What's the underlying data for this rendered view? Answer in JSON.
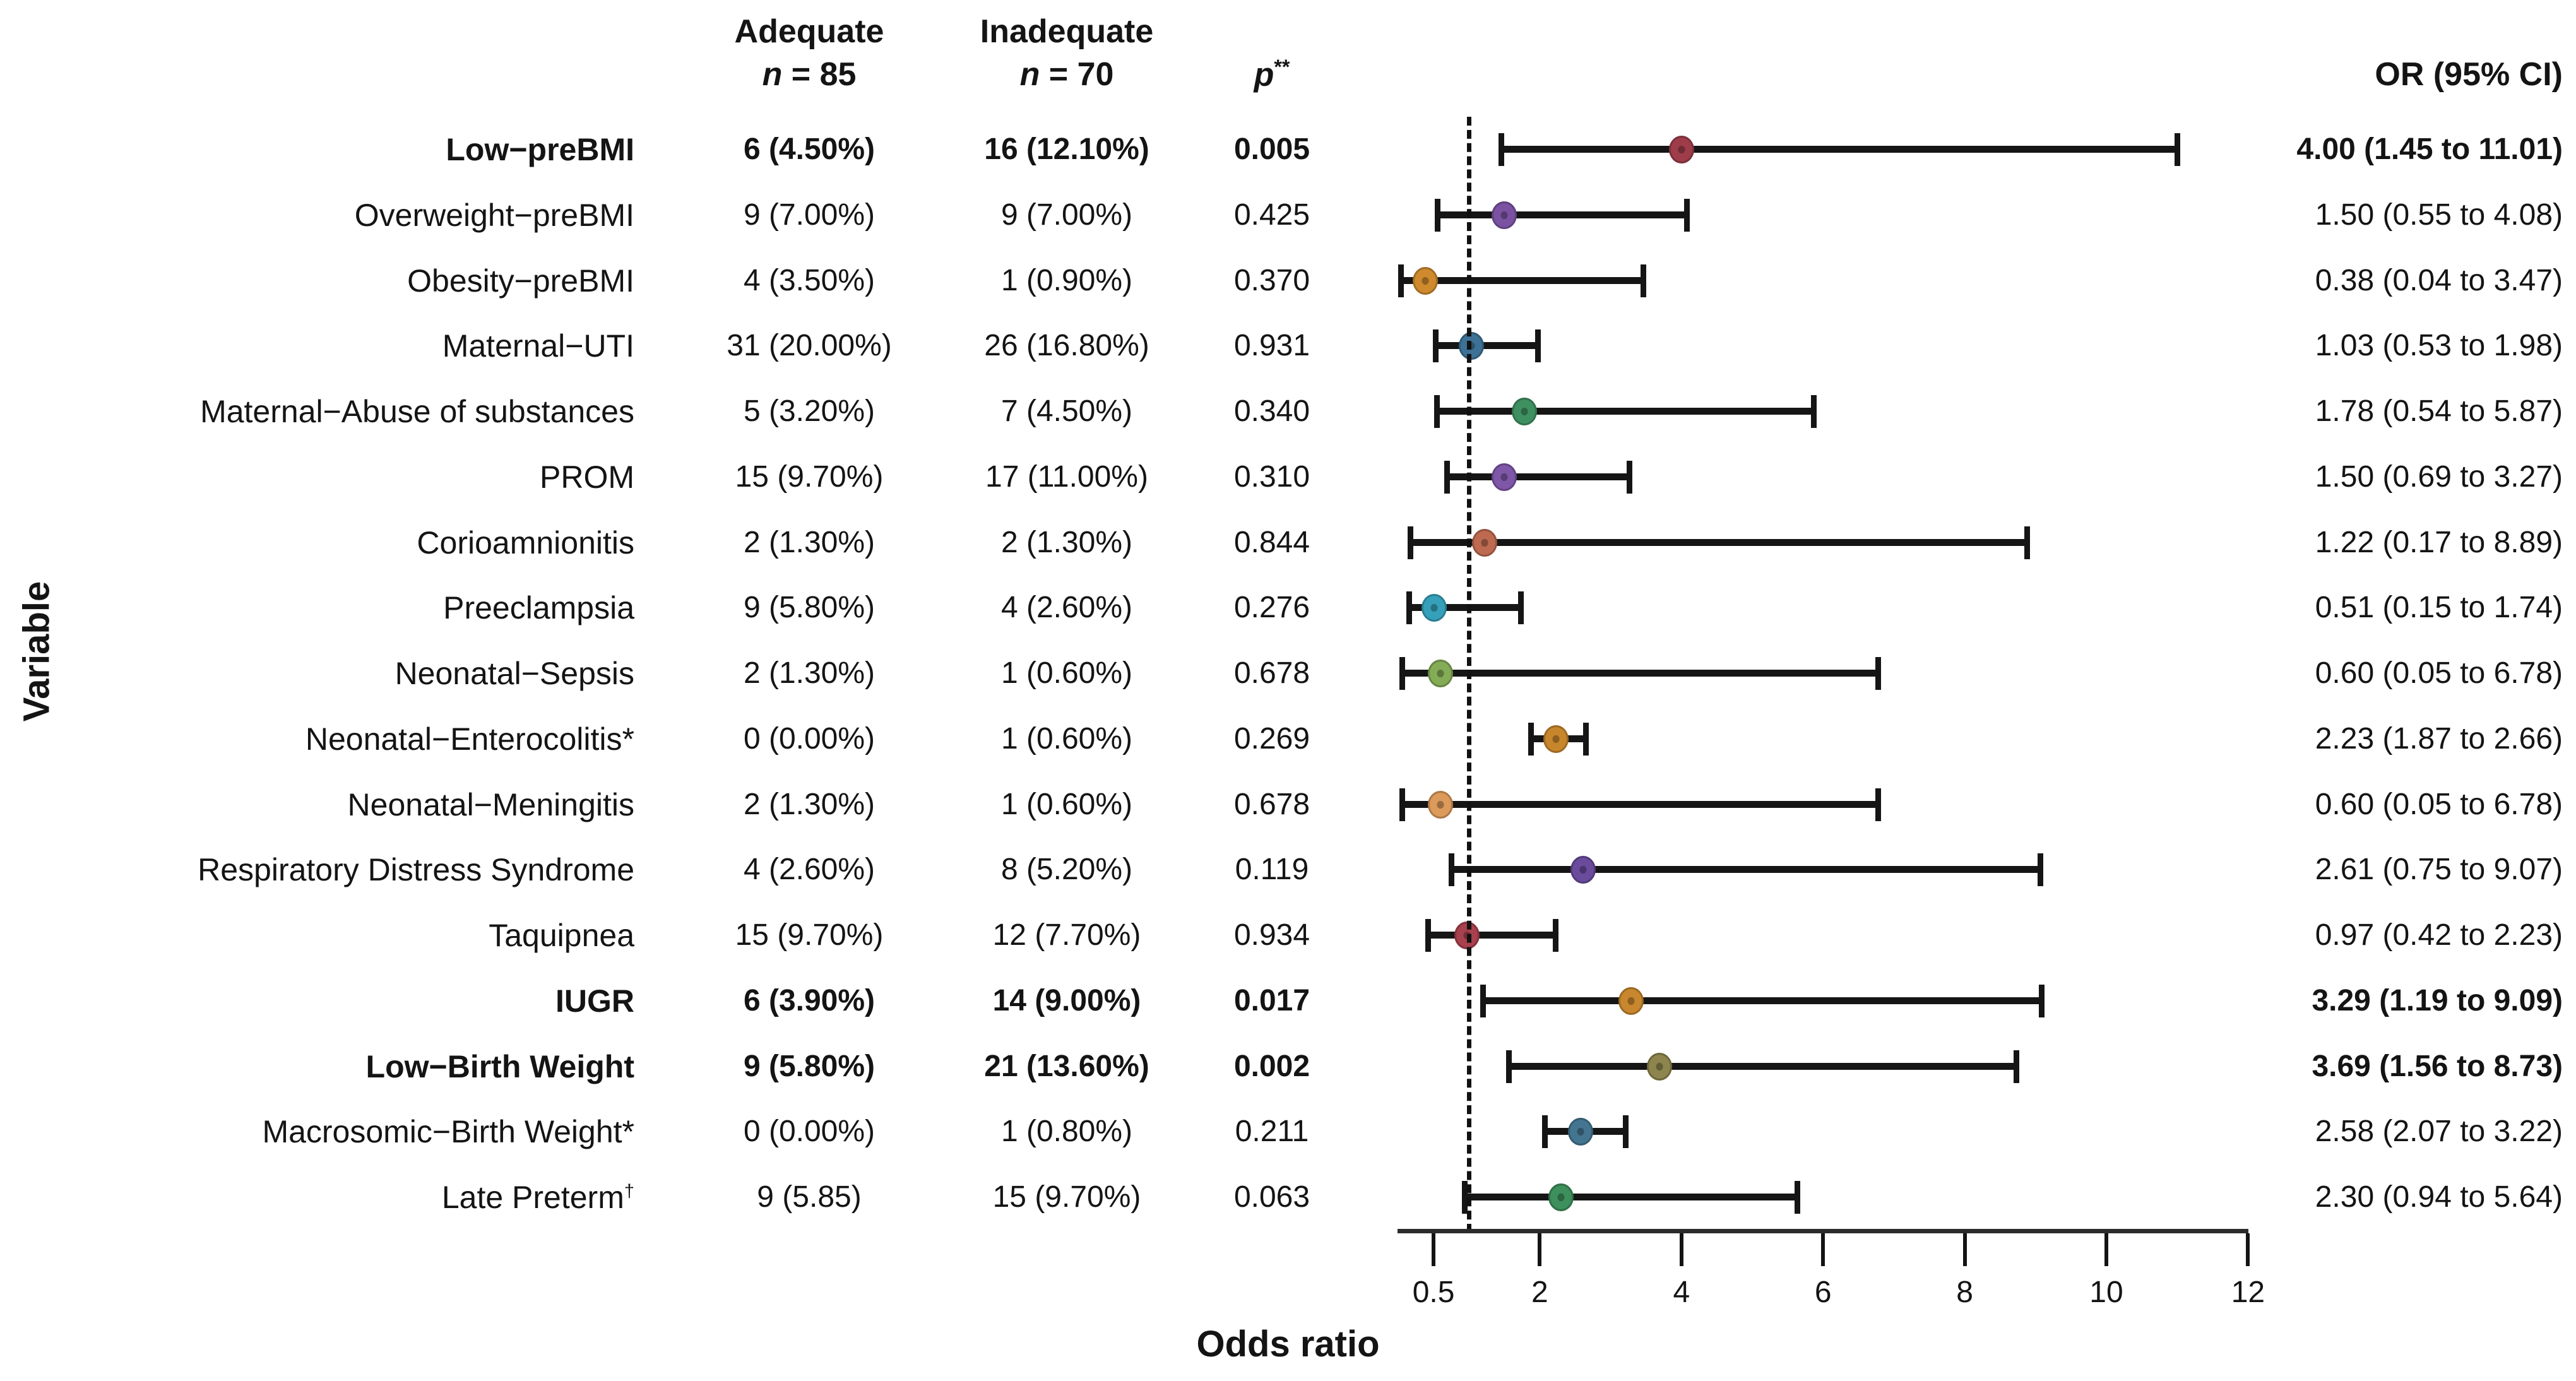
{
  "y_axis_label": "Variable",
  "header": {
    "adequate_line1": "Adequate",
    "adequate_line2": "n = 85",
    "inadequate_line1": "Inadequate",
    "inadequate_line2": "n = 70",
    "p_label": "p",
    "p_sup": "**",
    "or_header": "OR (95% CI)"
  },
  "chart_data": {
    "type": "scatter",
    "variant": "forest-plot",
    "xlabel": "Odds ratio",
    "ylabel": "Variable",
    "xlim": [
      0,
      12.05
    ],
    "x_ticks": [
      0.5,
      2,
      4,
      6,
      8,
      10,
      12
    ],
    "x_tick_labels": [
      "0.5",
      "2",
      "4",
      "6",
      "8",
      "10",
      "12"
    ],
    "reference_line_x": 1,
    "reference_line_style": "dashed",
    "bar_color": "#151515",
    "grid": false,
    "rows": [
      {
        "label": "Low−preBMI",
        "label_sup": "",
        "adequate": "6 (4.50%)",
        "inadequate": "16 (12.10%)",
        "p": "0.005",
        "or": 4.0,
        "ci_low": 1.45,
        "ci_high": 11.01,
        "or_text": "4.00 (1.45 to 11.01)",
        "bold": true,
        "color": "#9e3d49"
      },
      {
        "label": "Overweight−preBMI",
        "label_sup": "",
        "adequate": "9 (7.00%)",
        "inadequate": "9 (7.00%)",
        "p": "0.425",
        "or": 1.5,
        "ci_low": 0.55,
        "ci_high": 4.08,
        "or_text": "1.50 (0.55 to 4.08)",
        "bold": false,
        "color": "#7a52a1"
      },
      {
        "label": "Obesity−preBMI",
        "label_sup": "",
        "adequate": "4 (3.50%)",
        "inadequate": "1 (0.90%)",
        "p": "0.370",
        "or": 0.38,
        "ci_low": 0.04,
        "ci_high": 3.47,
        "or_text": "0.38 (0.04 to 3.47)",
        "bold": false,
        "color": "#cf8a2e"
      },
      {
        "label": "Maternal−UTI",
        "label_sup": "",
        "adequate": "31 (20.00%)",
        "inadequate": "26 (16.80%)",
        "p": "0.931",
        "or": 1.03,
        "ci_low": 0.53,
        "ci_high": 1.98,
        "or_text": "1.03 (0.53 to 1.98)",
        "bold": false,
        "color": "#3d7296"
      },
      {
        "label": "Maternal−Abuse of substances",
        "label_sup": "",
        "adequate": "5 (3.20%)",
        "inadequate": "7 (4.50%)",
        "p": "0.340",
        "or": 1.78,
        "ci_low": 0.54,
        "ci_high": 5.87,
        "or_text": "1.78 (0.54 to 5.87)",
        "bold": false,
        "color": "#3f9061"
      },
      {
        "label": "PROM",
        "label_sup": "",
        "adequate": "15 (9.70%)",
        "inadequate": "17 (11.00%)",
        "p": "0.310",
        "or": 1.5,
        "ci_low": 0.69,
        "ci_high": 3.27,
        "or_text": "1.50 (0.69 to 3.27)",
        "bold": false,
        "color": "#7e57a8"
      },
      {
        "label": "Corioamnionitis",
        "label_sup": "",
        "adequate": "2 (1.30%)",
        "inadequate": "2 (1.30%)",
        "p": "0.844",
        "or": 1.22,
        "ci_low": 0.17,
        "ci_high": 8.89,
        "or_text": "1.22 (0.17 to 8.89)",
        "bold": false,
        "color": "#bd6a50"
      },
      {
        "label": "Preeclampsia",
        "label_sup": "",
        "adequate": "9 (5.80%)",
        "inadequate": "4 (2.60%)",
        "p": "0.276",
        "or": 0.51,
        "ci_low": 0.15,
        "ci_high": 1.74,
        "or_text": "0.51 (0.15 to 1.74)",
        "bold": false,
        "color": "#36a0ba"
      },
      {
        "label": "Neonatal−Sepsis",
        "label_sup": "",
        "adequate": "2 (1.30%)",
        "inadequate": "1 (0.60%)",
        "p": "0.678",
        "or": 0.6,
        "ci_low": 0.05,
        "ci_high": 6.78,
        "or_text": "0.60 (0.05 to 6.78)",
        "bold": false,
        "color": "#84ab56"
      },
      {
        "label": "Neonatal−Enterocolitis*",
        "label_sup": "",
        "adequate": "0 (0.00%)",
        "inadequate": "1 (0.60%)",
        "p": "0.269",
        "or": 2.23,
        "ci_low": 1.87,
        "ci_high": 2.66,
        "or_text": "2.23 (1.87 to 2.66)",
        "bold": false,
        "color": "#c8862c"
      },
      {
        "label": "Neonatal−Meningitis",
        "label_sup": "",
        "adequate": "2 (1.30%)",
        "inadequate": "1 (0.60%)",
        "p": "0.678",
        "or": 0.6,
        "ci_low": 0.05,
        "ci_high": 6.78,
        "or_text": "0.60 (0.05 to 6.78)",
        "bold": false,
        "color": "#dc9a5b"
      },
      {
        "label": "Respiratory Distress Syndrome",
        "label_sup": "",
        "adequate": "4 (2.60%)",
        "inadequate": "8 (5.20%)",
        "p": "0.119",
        "or": 2.61,
        "ci_low": 0.75,
        "ci_high": 9.07,
        "or_text": "2.61 (0.75 to 9.07)",
        "bold": false,
        "color": "#6a4b9c"
      },
      {
        "label": "Taquipnea",
        "label_sup": "",
        "adequate": "15 (9.70%)",
        "inadequate": "12 (7.70%)",
        "p": "0.934",
        "or": 0.97,
        "ci_low": 0.42,
        "ci_high": 2.23,
        "or_text": "0.97 (0.42 to 2.23)",
        "bold": false,
        "color": "#a8404d"
      },
      {
        "label": "IUGR",
        "label_sup": "",
        "adequate": "6 (3.90%)",
        "inadequate": "14 (9.00%)",
        "p": "0.017",
        "or": 3.29,
        "ci_low": 1.19,
        "ci_high": 9.09,
        "or_text": "3.29 (1.19 to 9.09)",
        "bold": true,
        "color": "#c8872e"
      },
      {
        "label": "Low−Birth Weight",
        "label_sup": "",
        "adequate": "9 (5.80%)",
        "inadequate": "21 (13.60%)",
        "p": "0.002",
        "or": 3.69,
        "ci_low": 1.56,
        "ci_high": 8.73,
        "or_text": "3.69 (1.56 to 8.73)",
        "bold": true,
        "color": "#8d854d"
      },
      {
        "label": "Macrosomic−Birth Weight*",
        "label_sup": "",
        "adequate": "0 (0.00%)",
        "inadequate": "1 (0.80%)",
        "p": "0.211",
        "or": 2.58,
        "ci_low": 2.07,
        "ci_high": 3.22,
        "or_text": "2.58 (2.07 to 3.22)",
        "bold": false,
        "color": "#447590"
      },
      {
        "label": "Late Preterm",
        "label_sup": "†",
        "adequate": "9 (5.85)",
        "inadequate": "15 (9.70%)",
        "p": "0.063",
        "or": 2.3,
        "ci_low": 0.94,
        "ci_high": 5.64,
        "or_text": "2.30 (0.94 to 5.64)",
        "bold": false,
        "color": "#3d8f5c"
      }
    ]
  }
}
